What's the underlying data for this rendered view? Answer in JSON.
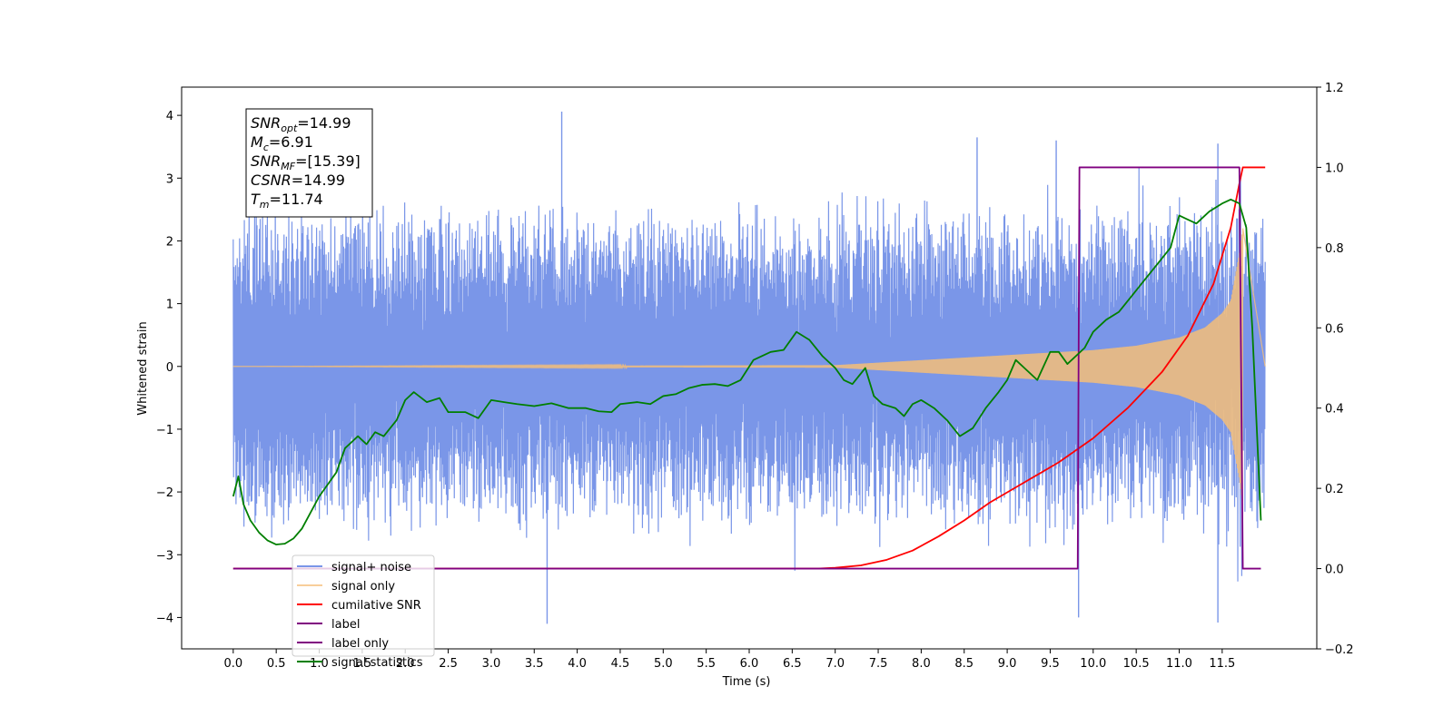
{
  "chart_data": {
    "type": "line",
    "xlabel": "Time (s)",
    "ylabel": "Whitened strain",
    "xlim": [
      -0.6,
      12.6
    ],
    "ylim": [
      -4.5,
      4.45
    ],
    "y2lim": [
      -0.2,
      1.2
    ],
    "grid": false,
    "legend_position": "lower-left",
    "x_ticks": [
      "0.0",
      "0.5",
      "1.0",
      "1.5",
      "2.0",
      "2.5",
      "3.0",
      "3.5",
      "4.0",
      "4.5",
      "5.0",
      "5.5",
      "6.0",
      "6.5",
      "7.0",
      "7.5",
      "8.0",
      "8.5",
      "9.0",
      "9.5",
      "10.0",
      "10.5",
      "11.0",
      "11.5"
    ],
    "y_ticks": [
      "4",
      "3",
      "2",
      "1",
      "0",
      "−1",
      "−2",
      "−3",
      "−4"
    ],
    "y2_ticks": [
      "1.2",
      "1.0",
      "0.8",
      "0.6",
      "0.4",
      "0.2",
      "0.0",
      "−0.2"
    ],
    "annotation": {
      "lines": [
        {
          "name": "SNR",
          "sub": "opt",
          "value": "=14.99"
        },
        {
          "name": "M",
          "sub": "c",
          "value": "=6.91"
        },
        {
          "name": "SNR",
          "sub": "MF",
          "value": "=[15.39]"
        },
        {
          "name": "CSNR",
          "sub": "",
          "value": "=14.99"
        },
        {
          "name": "T",
          "sub": "m",
          "value": "=11.74"
        }
      ]
    },
    "series": [
      {
        "name": "signal+ noise",
        "color": "#7a96e8",
        "axis": "left",
        "style": "noise band",
        "x_range": [
          0.0,
          12.0
        ],
        "approx_envelope": [
          -2.5,
          2.5
        ],
        "peaks": [
          [
            3.82,
            4.06
          ],
          [
            8.65,
            3.65
          ],
          [
            9.57,
            3.6
          ],
          [
            11.45,
            3.55
          ],
          [
            3.65,
            -4.1
          ],
          [
            11.45,
            -4.08
          ],
          [
            9.83,
            -4.0
          ]
        ]
      },
      {
        "name": "signal only",
        "color": "#f5be78",
        "axis": "left",
        "style": "chirp",
        "x_range": [
          0.0,
          11.74
        ],
        "amplitude_points": [
          [
            0.0,
            0.0
          ],
          [
            7.0,
            0.02
          ],
          [
            8.0,
            0.1
          ],
          [
            9.0,
            0.18
          ],
          [
            10.0,
            0.26
          ],
          [
            10.5,
            0.33
          ],
          [
            11.0,
            0.46
          ],
          [
            11.3,
            0.62
          ],
          [
            11.5,
            0.85
          ],
          [
            11.6,
            1.05
          ],
          [
            11.7,
            1.8
          ],
          [
            11.74,
            2.2
          ]
        ]
      },
      {
        "name": "cumilative SNR",
        "color": "#ff0000",
        "axis": "right",
        "points": [
          [
            0.0,
            0.0
          ],
          [
            6.8,
            0.0
          ],
          [
            7.0,
            0.002
          ],
          [
            7.3,
            0.008
          ],
          [
            7.6,
            0.022
          ],
          [
            7.9,
            0.045
          ],
          [
            8.2,
            0.08
          ],
          [
            8.5,
            0.12
          ],
          [
            8.8,
            0.165
          ],
          [
            9.2,
            0.215
          ],
          [
            9.6,
            0.265
          ],
          [
            10.0,
            0.325
          ],
          [
            10.4,
            0.4
          ],
          [
            10.8,
            0.49
          ],
          [
            11.1,
            0.58
          ],
          [
            11.4,
            0.71
          ],
          [
            11.6,
            0.85
          ],
          [
            11.7,
            0.96
          ],
          [
            11.74,
            1.0
          ],
          [
            12.0,
            1.0
          ]
        ]
      },
      {
        "name": "label",
        "color": "#800080",
        "axis": "right",
        "points": [
          [
            0.0,
            0.0
          ],
          [
            9.82,
            0.0
          ],
          [
            9.84,
            1.0
          ],
          [
            11.7,
            1.0
          ],
          [
            11.74,
            0.0
          ],
          [
            11.95,
            0.0
          ]
        ]
      },
      {
        "name": "label only",
        "color": "#800080",
        "axis": "right",
        "legend_only": true,
        "points": []
      },
      {
        "name": "signal statistics",
        "color": "#007f00",
        "axis": "right",
        "points": [
          [
            0.0,
            0.18
          ],
          [
            0.06,
            0.23
          ],
          [
            0.12,
            0.16
          ],
          [
            0.2,
            0.12
          ],
          [
            0.3,
            0.09
          ],
          [
            0.4,
            0.07
          ],
          [
            0.5,
            0.06
          ],
          [
            0.6,
            0.062
          ],
          [
            0.7,
            0.075
          ],
          [
            0.8,
            0.1
          ],
          [
            0.9,
            0.14
          ],
          [
            1.0,
            0.18
          ],
          [
            1.1,
            0.21
          ],
          [
            1.2,
            0.24
          ],
          [
            1.3,
            0.3
          ],
          [
            1.45,
            0.33
          ],
          [
            1.55,
            0.31
          ],
          [
            1.65,
            0.34
          ],
          [
            1.75,
            0.33
          ],
          [
            1.9,
            0.37
          ],
          [
            2.0,
            0.42
          ],
          [
            2.1,
            0.44
          ],
          [
            2.25,
            0.415
          ],
          [
            2.4,
            0.425
          ],
          [
            2.5,
            0.39
          ],
          [
            2.7,
            0.39
          ],
          [
            2.85,
            0.375
          ],
          [
            3.0,
            0.42
          ],
          [
            3.15,
            0.415
          ],
          [
            3.3,
            0.41
          ],
          [
            3.5,
            0.405
          ],
          [
            3.7,
            0.412
          ],
          [
            3.9,
            0.4
          ],
          [
            4.1,
            0.4
          ],
          [
            4.25,
            0.392
          ],
          [
            4.4,
            0.39
          ],
          [
            4.5,
            0.41
          ],
          [
            4.7,
            0.415
          ],
          [
            4.85,
            0.41
          ],
          [
            5.0,
            0.43
          ],
          [
            5.15,
            0.435
          ],
          [
            5.3,
            0.45
          ],
          [
            5.45,
            0.458
          ],
          [
            5.6,
            0.46
          ],
          [
            5.75,
            0.455
          ],
          [
            5.9,
            0.47
          ],
          [
            6.05,
            0.52
          ],
          [
            6.25,
            0.54
          ],
          [
            6.4,
            0.545
          ],
          [
            6.55,
            0.59
          ],
          [
            6.7,
            0.57
          ],
          [
            6.85,
            0.53
          ],
          [
            7.0,
            0.5
          ],
          [
            7.1,
            0.47
          ],
          [
            7.2,
            0.46
          ],
          [
            7.35,
            0.5
          ],
          [
            7.45,
            0.43
          ],
          [
            7.55,
            0.41
          ],
          [
            7.7,
            0.4
          ],
          [
            7.8,
            0.38
          ],
          [
            7.9,
            0.41
          ],
          [
            8.0,
            0.42
          ],
          [
            8.15,
            0.4
          ],
          [
            8.3,
            0.37
          ],
          [
            8.45,
            0.33
          ],
          [
            8.6,
            0.35
          ],
          [
            8.75,
            0.4
          ],
          [
            8.9,
            0.44
          ],
          [
            9.0,
            0.47
          ],
          [
            9.1,
            0.52
          ],
          [
            9.2,
            0.5
          ],
          [
            9.35,
            0.47
          ],
          [
            9.5,
            0.54
          ],
          [
            9.6,
            0.54
          ],
          [
            9.7,
            0.51
          ],
          [
            9.8,
            0.53
          ],
          [
            9.9,
            0.55
          ],
          [
            10.0,
            0.59
          ],
          [
            10.15,
            0.62
          ],
          [
            10.3,
            0.64
          ],
          [
            10.45,
            0.68
          ],
          [
            10.6,
            0.72
          ],
          [
            10.75,
            0.76
          ],
          [
            10.9,
            0.8
          ],
          [
            11.0,
            0.88
          ],
          [
            11.1,
            0.87
          ],
          [
            11.2,
            0.86
          ],
          [
            11.35,
            0.89
          ],
          [
            11.5,
            0.91
          ],
          [
            11.6,
            0.92
          ],
          [
            11.7,
            0.91
          ],
          [
            11.78,
            0.85
          ],
          [
            11.85,
            0.6
          ],
          [
            11.95,
            0.12
          ]
        ]
      }
    ]
  }
}
